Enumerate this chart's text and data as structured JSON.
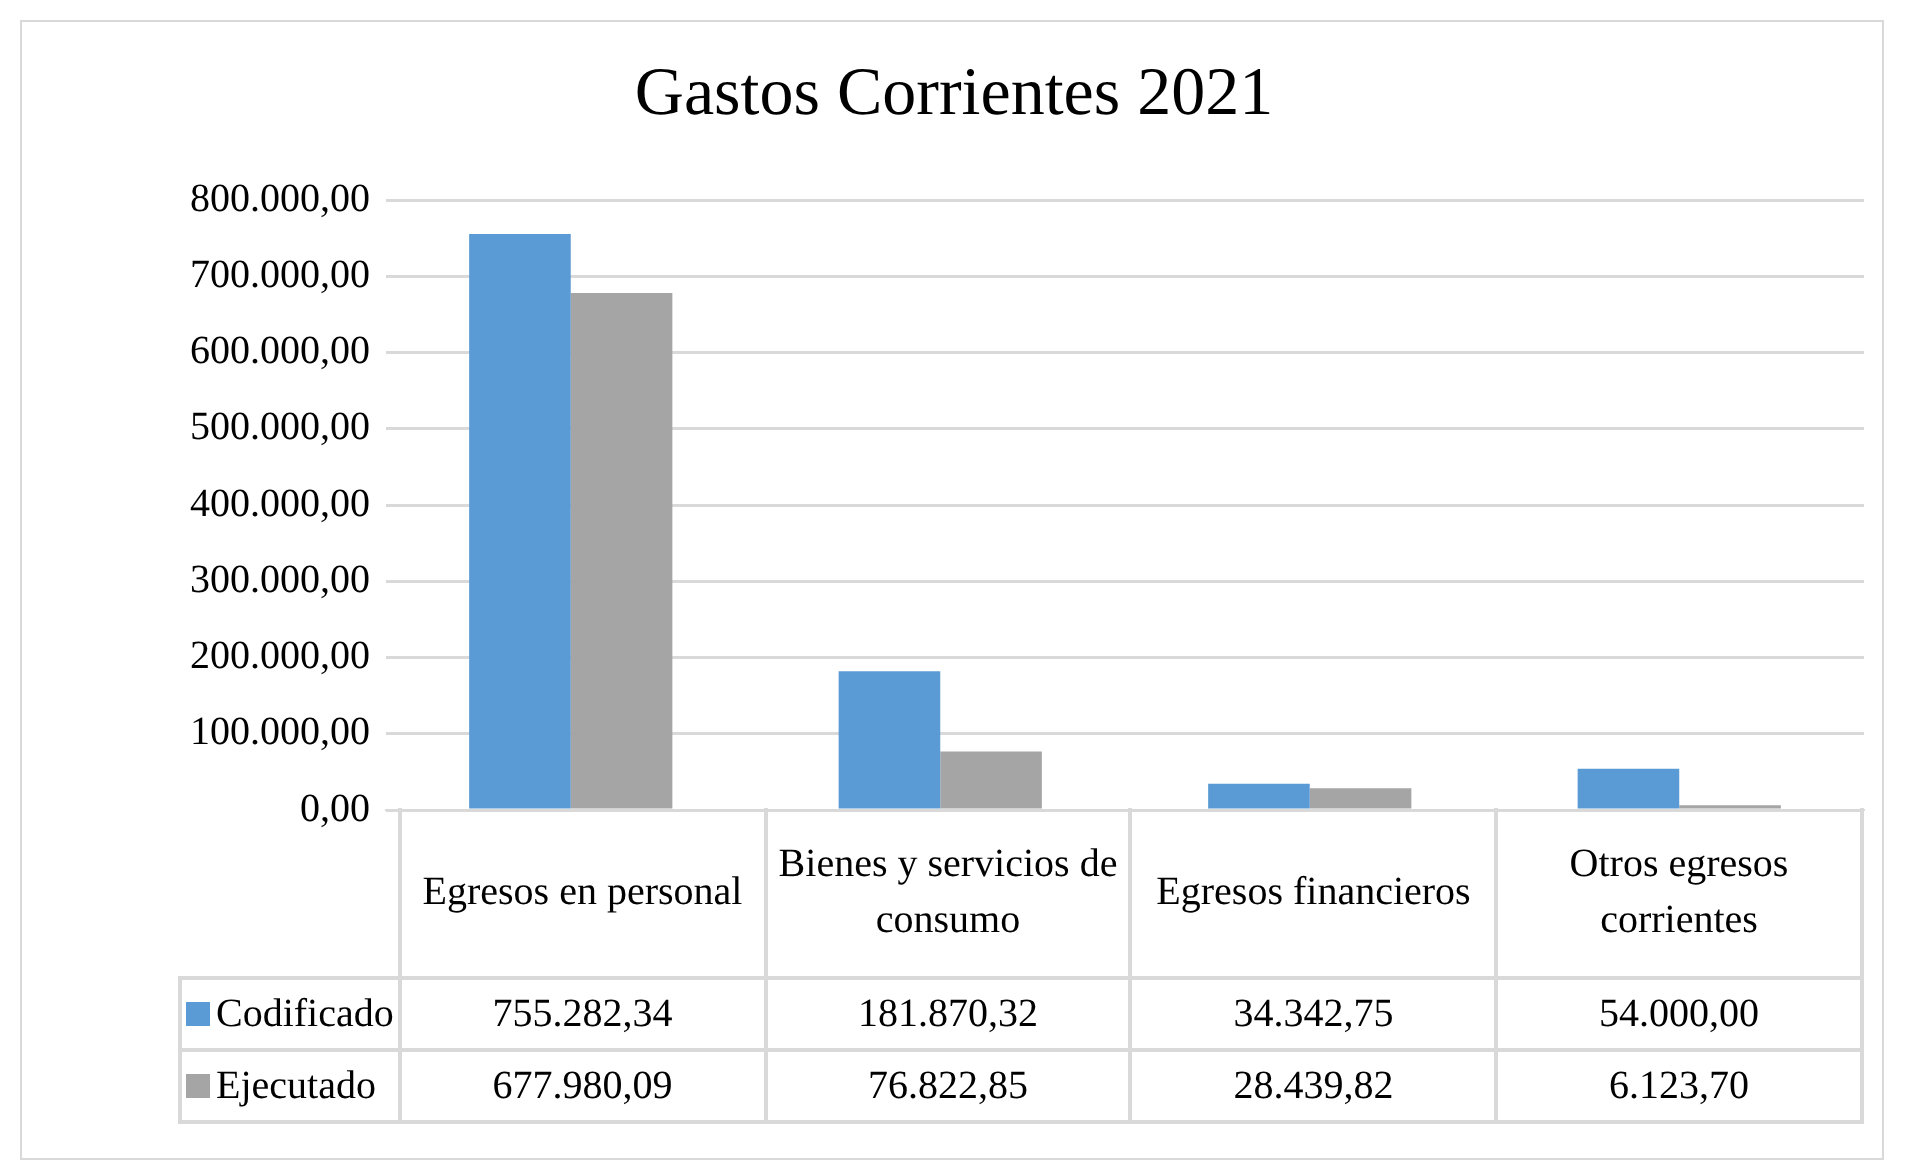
{
  "chart_data": {
    "type": "bar",
    "title": "Gastos Corrientes 2021",
    "categories": [
      "Egresos en personal",
      "Bienes y servicios de consumo",
      "Egresos financieros",
      "Otros egresos corrientes"
    ],
    "series": [
      {
        "name": "Codificado",
        "color": "#5b9bd5",
        "values": [
          755282.34,
          181870.32,
          34342.75,
          54000.0
        ],
        "value_labels": [
          "755.282,34",
          "181.870,32",
          "34.342,75",
          "54.000,00"
        ]
      },
      {
        "name": "Ejecutado",
        "color": "#a5a5a5",
        "values": [
          677980.09,
          76822.85,
          28439.82,
          6123.7
        ],
        "value_labels": [
          "677.980,09",
          "76.822,85",
          "28.439,82",
          "6.123,70"
        ]
      }
    ],
    "ylim": [
      0,
      800000
    ],
    "yticks": [
      {
        "value": 0,
        "label": "0,00"
      },
      {
        "value": 100000,
        "label": "100.000,00"
      },
      {
        "value": 200000,
        "label": "200.000,00"
      },
      {
        "value": 300000,
        "label": "300.000,00"
      },
      {
        "value": 400000,
        "label": "400.000,00"
      },
      {
        "value": 500000,
        "label": "500.000,00"
      },
      {
        "value": 600000,
        "label": "600.000,00"
      },
      {
        "value": 700000,
        "label": "700.000,00"
      },
      {
        "value": 800000,
        "label": "800.000,00"
      }
    ],
    "grid": "y",
    "legend": "bottom"
  }
}
